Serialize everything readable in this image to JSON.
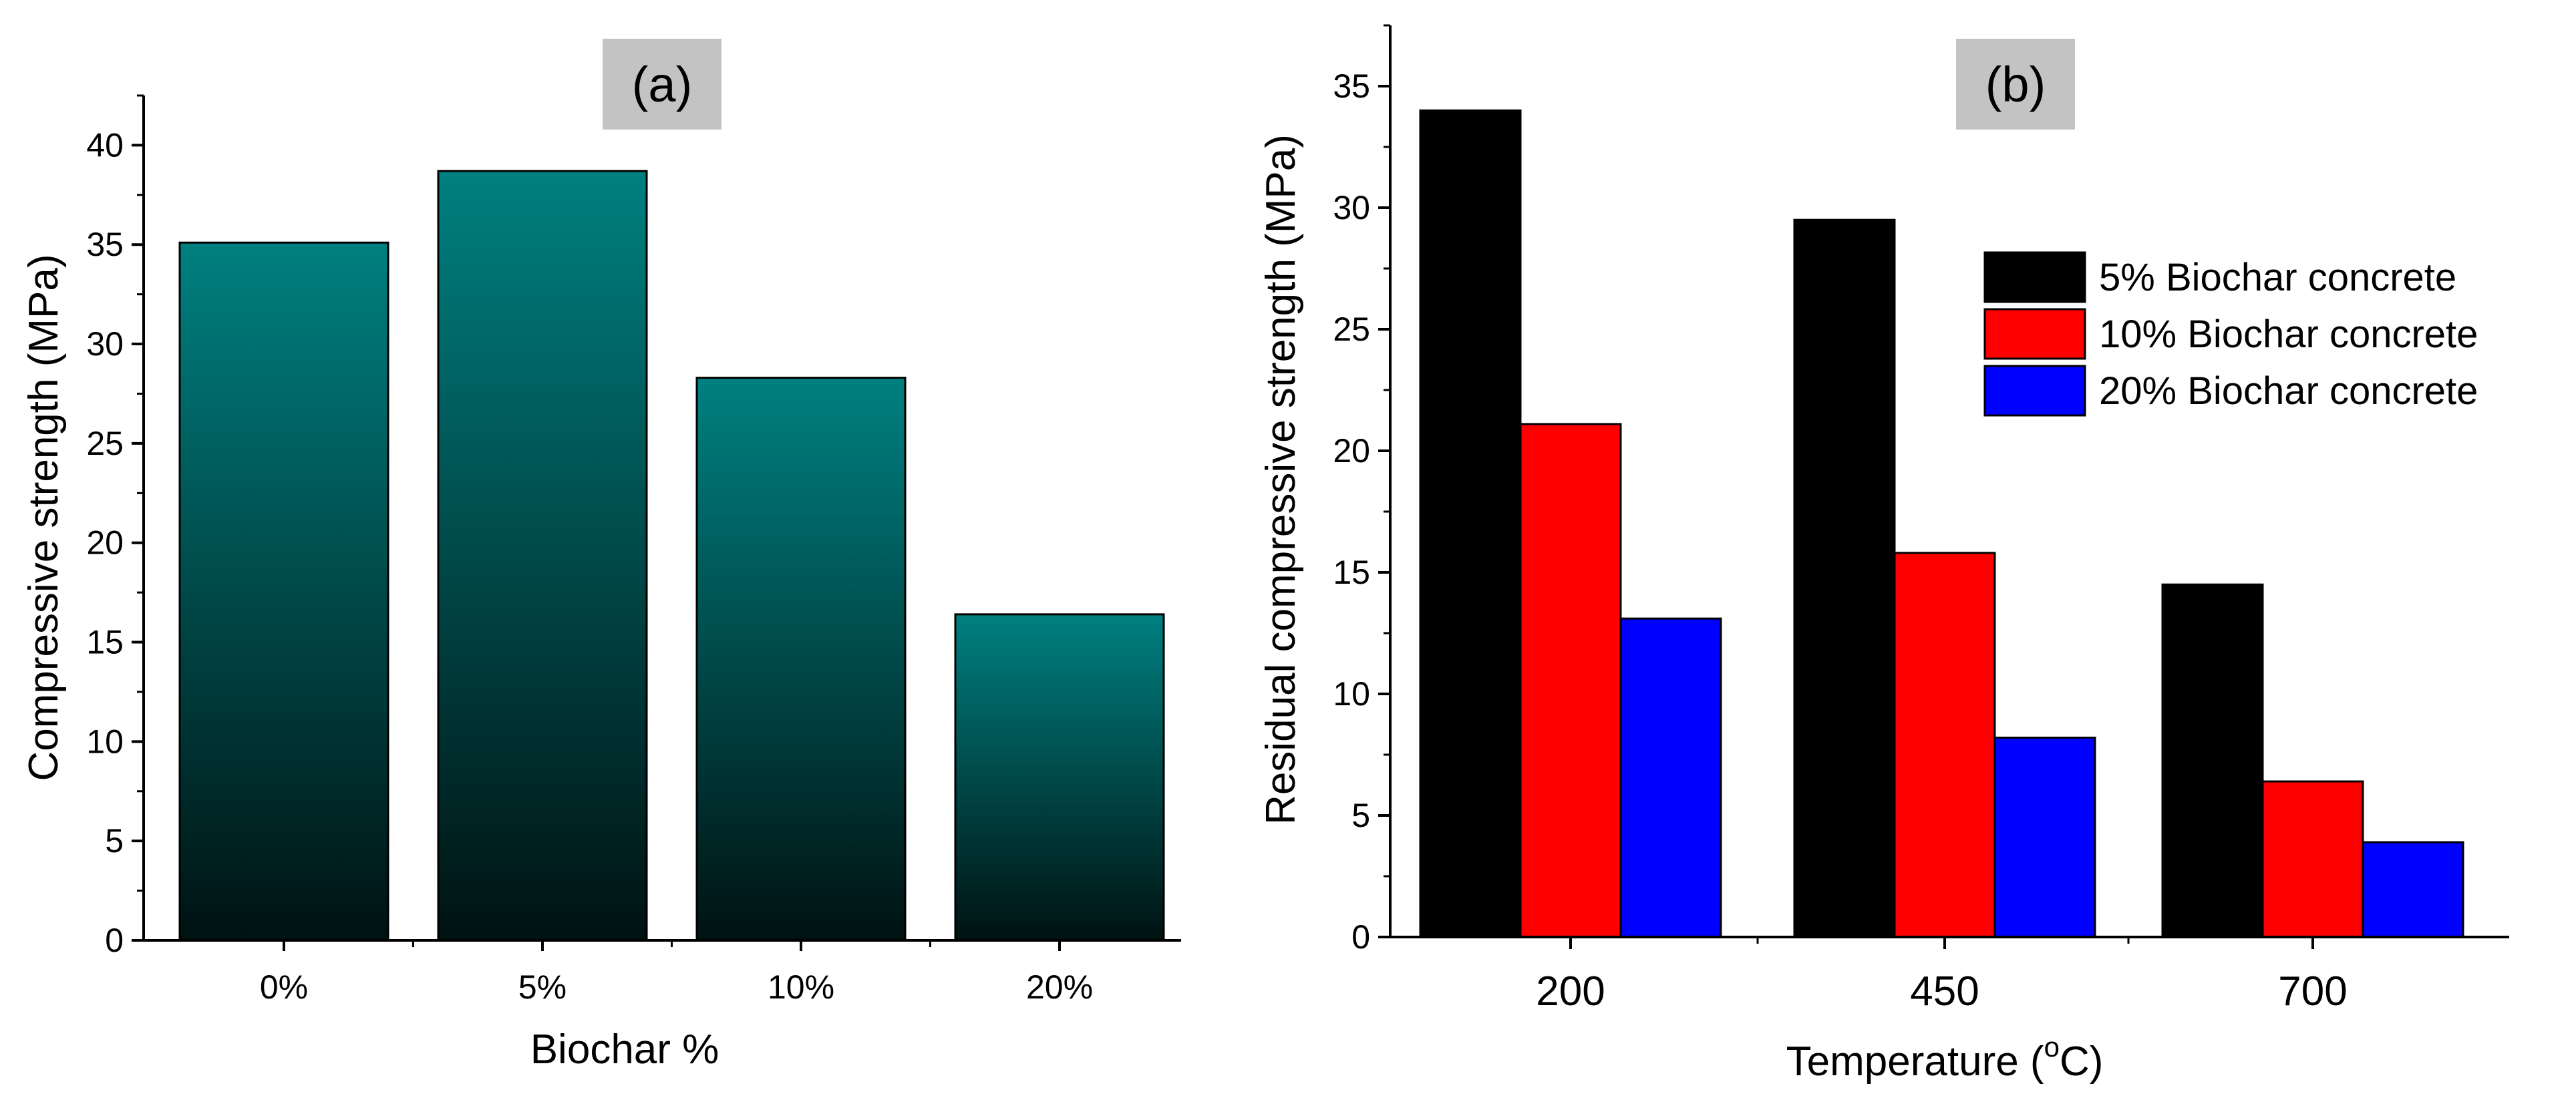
{
  "chart_data": [
    {
      "id": "a",
      "type": "bar",
      "panel_label": "(a)",
      "title": "",
      "xlabel": "Biochar %",
      "ylabel": "Compressive strength (MPa)",
      "categories": [
        "0%",
        "5%",
        "10%",
        "20%"
      ],
      "values": [
        35.1,
        38.7,
        28.3,
        16.4
      ],
      "ylim": [
        0,
        42.5
      ],
      "yticks": [
        0,
        5,
        10,
        15,
        20,
        25,
        30,
        35,
        40
      ],
      "grid": false,
      "colors": {
        "bar_top": "#008080",
        "bar_bottom": "#001212",
        "edge": "#000000",
        "panel_label_bg": "#c3c3c3"
      }
    },
    {
      "id": "b",
      "type": "bar",
      "panel_label": "(b)",
      "title": "",
      "xlabel_prefix": "Temperature (",
      "xlabel_sup": "o",
      "xlabel_suffix": "C)",
      "ylabel": "Residual compressive strength (MPa)",
      "categories": [
        "200",
        "450",
        "700"
      ],
      "series": [
        {
          "name": "5% Biochar concrete",
          "color": "#000000",
          "values": [
            34.0,
            29.5,
            14.5
          ]
        },
        {
          "name": "10% Biochar concrete",
          "color": "#ff0000",
          "values": [
            21.1,
            15.8,
            6.4
          ]
        },
        {
          "name": "20% Biochar concrete",
          "color": "#0000ff",
          "values": [
            13.1,
            8.2,
            3.9
          ]
        }
      ],
      "ylim": [
        0,
        37.5
      ],
      "yticks": [
        0,
        5,
        10,
        15,
        20,
        25,
        30,
        35
      ],
      "grid": false,
      "legend": "top-right",
      "colors": {
        "edge": "#000000",
        "panel_label_bg": "#c3c3c3"
      }
    }
  ]
}
